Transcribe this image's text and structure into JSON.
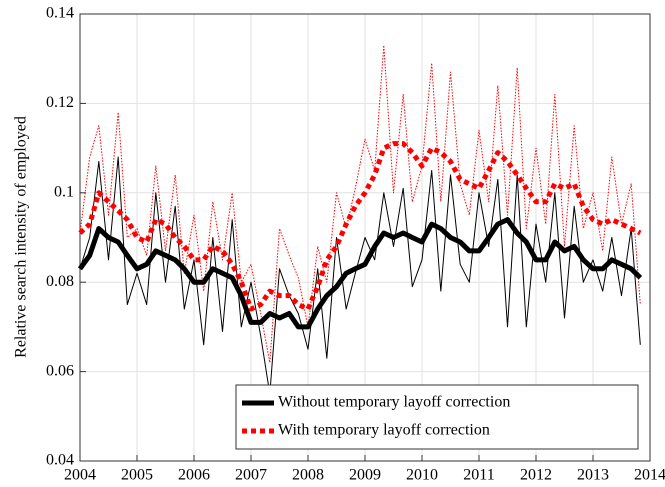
{
  "chart_data": {
    "type": "line",
    "ylabel": "Relative search intensity of employed",
    "x": [
      2004,
      2004.17,
      2004.33,
      2004.5,
      2004.67,
      2004.83,
      2005,
      2005.17,
      2005.33,
      2005.5,
      2005.67,
      2005.83,
      2006,
      2006.17,
      2006.33,
      2006.5,
      2006.67,
      2006.83,
      2007,
      2007.17,
      2007.33,
      2007.5,
      2007.67,
      2007.83,
      2008,
      2008.17,
      2008.33,
      2008.5,
      2008.67,
      2008.83,
      2009,
      2009.17,
      2009.33,
      2009.5,
      2009.67,
      2009.83,
      2010,
      2010.17,
      2010.33,
      2010.5,
      2010.67,
      2010.83,
      2011,
      2011.17,
      2011.33,
      2011.5,
      2011.67,
      2011.83,
      2012,
      2012.17,
      2012.33,
      2012.5,
      2012.67,
      2012.83,
      2013,
      2013.17,
      2013.33,
      2013.5,
      2013.67,
      2013.83
    ],
    "xlim": [
      2004,
      2014
    ],
    "xticks": [
      2004,
      2005,
      2006,
      2007,
      2008,
      2009,
      2010,
      2011,
      2012,
      2013,
      2014
    ],
    "ylim": [
      0.04,
      0.14
    ],
    "yticks": [
      0.04,
      0.06,
      0.08,
      0.1,
      0.12,
      0.14
    ],
    "grid": true,
    "legend": "lower right",
    "series": [
      {
        "color": "#000000",
        "style": "solid",
        "weight": "thin",
        "values": [
          0.083,
          0.09,
          0.107,
          0.085,
          0.108,
          0.075,
          0.082,
          0.075,
          0.1,
          0.08,
          0.097,
          0.074,
          0.085,
          0.066,
          0.09,
          0.069,
          0.094,
          0.07,
          0.08,
          0.068,
          0.055,
          0.083,
          0.077,
          0.073,
          0.065,
          0.083,
          0.063,
          0.09,
          0.074,
          0.082,
          0.09,
          0.085,
          0.1,
          0.088,
          0.101,
          0.079,
          0.085,
          0.105,
          0.078,
          0.104,
          0.084,
          0.08,
          0.1,
          0.088,
          0.103,
          0.07,
          0.104,
          0.07,
          0.093,
          0.08,
          0.1,
          0.072,
          0.097,
          0.08,
          0.085,
          0.078,
          0.09,
          0.077,
          0.092,
          0.066
        ]
      },
      {
        "color": "#ff0000",
        "style": "dotted",
        "weight": "thin",
        "values": [
          0.091,
          0.108,
          0.115,
          0.095,
          0.118,
          0.09,
          0.092,
          0.086,
          0.106,
          0.087,
          0.104,
          0.082,
          0.095,
          0.078,
          0.098,
          0.085,
          0.1,
          0.08,
          0.084,
          0.073,
          0.062,
          0.092,
          0.086,
          0.081,
          0.07,
          0.088,
          0.08,
          0.1,
          0.092,
          0.101,
          0.112,
          0.105,
          0.133,
          0.1,
          0.122,
          0.098,
          0.106,
          0.129,
          0.098,
          0.127,
          0.102,
          0.095,
          0.114,
          0.098,
          0.124,
          0.095,
          0.128,
          0.092,
          0.11,
          0.093,
          0.122,
          0.088,
          0.115,
          0.092,
          0.1,
          0.087,
          0.108,
          0.093,
          0.102,
          0.075
        ]
      },
      {
        "name": "Without temporary layoff correction",
        "color": "#000000",
        "style": "solid",
        "weight": "thick",
        "values": [
          0.083,
          0.086,
          0.092,
          0.09,
          0.089,
          0.086,
          0.083,
          0.084,
          0.087,
          0.086,
          0.085,
          0.083,
          0.08,
          0.08,
          0.083,
          0.082,
          0.081,
          0.077,
          0.071,
          0.071,
          0.073,
          0.072,
          0.073,
          0.07,
          0.07,
          0.074,
          0.077,
          0.079,
          0.082,
          0.083,
          0.084,
          0.088,
          0.091,
          0.09,
          0.091,
          0.09,
          0.089,
          0.093,
          0.092,
          0.09,
          0.089,
          0.087,
          0.087,
          0.09,
          0.093,
          0.094,
          0.091,
          0.089,
          0.085,
          0.085,
          0.089,
          0.087,
          0.088,
          0.085,
          0.083,
          0.083,
          0.085,
          0.084,
          0.083,
          0.081
        ]
      },
      {
        "name": "With temporary layoff correction",
        "color": "#ff0000",
        "style": "dotted",
        "weight": "thick",
        "values": [
          0.091,
          0.093,
          0.1,
          0.098,
          0.096,
          0.094,
          0.09,
          0.089,
          0.094,
          0.093,
          0.09,
          0.088,
          0.085,
          0.085,
          0.088,
          0.087,
          0.084,
          0.08,
          0.074,
          0.075,
          0.078,
          0.077,
          0.077,
          0.075,
          0.074,
          0.079,
          0.085,
          0.088,
          0.093,
          0.097,
          0.1,
          0.104,
          0.11,
          0.111,
          0.111,
          0.109,
          0.106,
          0.11,
          0.109,
          0.107,
          0.103,
          0.102,
          0.101,
          0.105,
          0.109,
          0.107,
          0.104,
          0.101,
          0.098,
          0.098,
          0.102,
          0.101,
          0.102,
          0.097,
          0.094,
          0.093,
          0.094,
          0.093,
          0.092,
          0.091
        ]
      }
    ]
  }
}
